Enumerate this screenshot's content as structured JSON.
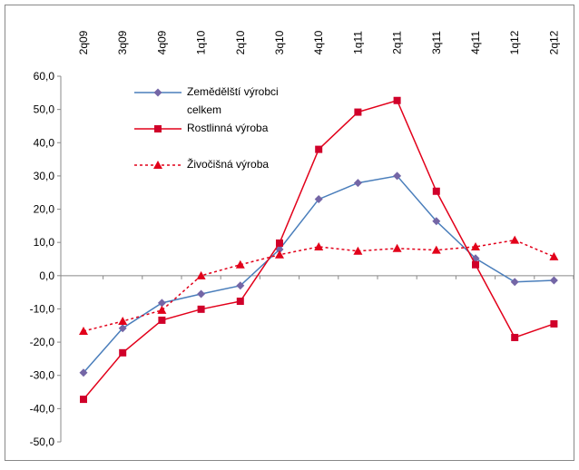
{
  "chart_data": {
    "type": "line",
    "categories": [
      "2q09",
      "3q09",
      "4q09",
      "1q10",
      "2q10",
      "3q10",
      "4q10",
      "1q11",
      "2q11",
      "3q11",
      "4q11",
      "1q12",
      "2q12"
    ],
    "ylim": [
      -50,
      60
    ],
    "yticks": [
      {
        "value": -50,
        "label": "-50,0"
      },
      {
        "value": -40,
        "label": "-40,0"
      },
      {
        "value": -30,
        "label": "-30,0"
      },
      {
        "value": -20,
        "label": "-20,0"
      },
      {
        "value": -10,
        "label": "-10,0"
      },
      {
        "value": 0,
        "label": "0,0"
      },
      {
        "value": 10,
        "label": "10,0"
      },
      {
        "value": 20,
        "label": "20,0"
      },
      {
        "value": 30,
        "label": "30,0"
      },
      {
        "value": 40,
        "label": "40,0"
      },
      {
        "value": 50,
        "label": "50,0"
      },
      {
        "value": 60,
        "label": "60,0"
      }
    ],
    "grid": false,
    "legend": "upper left",
    "series": [
      {
        "name": "Zemědělští výrobci celkem",
        "color": "#4a7ebb",
        "marker": "diamond",
        "marker_color": "#7466a6",
        "dash": "solid",
        "values": [
          -29.2,
          -15.8,
          -8.2,
          -5.5,
          -3.0,
          7.9,
          23.0,
          27.9,
          30.0,
          16.4,
          5.2,
          -1.9,
          -1.4
        ]
      },
      {
        "name": "Rostlinná výroba",
        "color": "#e2001a",
        "marker": "square",
        "marker_color": "#d0002a",
        "dash": "solid",
        "values": [
          -37.2,
          -23.2,
          -13.4,
          -10.1,
          -7.7,
          9.8,
          38.0,
          49.2,
          52.7,
          25.4,
          3.3,
          -18.6,
          -14.5
        ]
      },
      {
        "name": "Živočišná výroba",
        "color": "#e2001a",
        "marker": "triangle",
        "marker_color": "#e2001a",
        "dash": "dotted",
        "values": [
          -16.7,
          -13.7,
          -10.4,
          0.0,
          3.3,
          6.3,
          8.7,
          7.4,
          8.2,
          7.7,
          8.7,
          10.7,
          5.7
        ]
      }
    ]
  }
}
